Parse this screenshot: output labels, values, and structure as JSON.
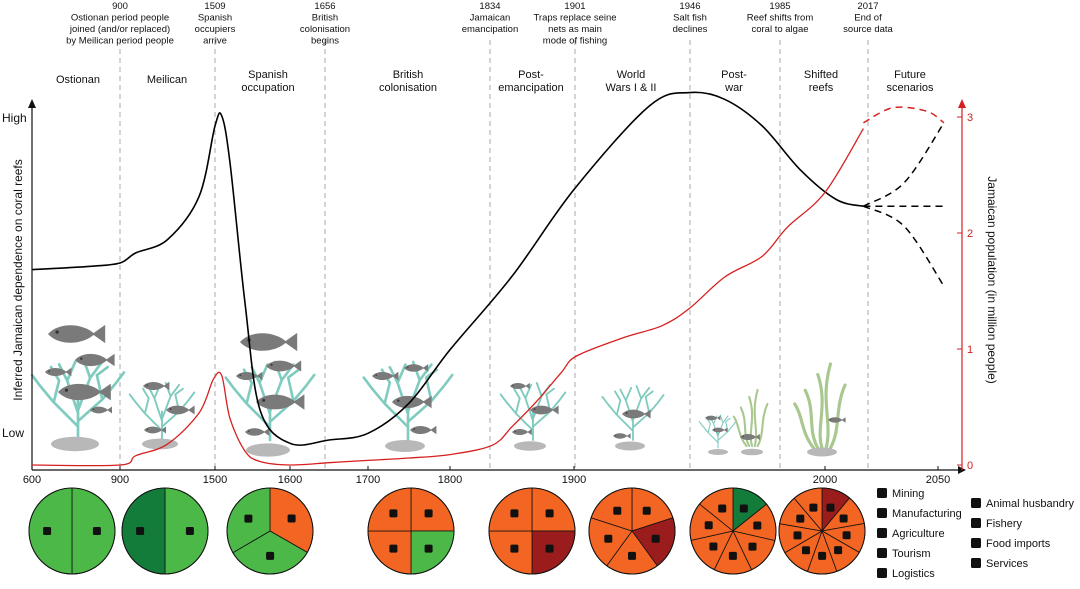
{
  "events": [
    {
      "lines": [
        "900",
        "Ostionan period people",
        "joined (and/or replaced)",
        "by Meilican period people"
      ]
    },
    {
      "lines": [
        "1509",
        "Spanish",
        "occupiers",
        "arrive"
      ]
    },
    {
      "lines": [
        "1656",
        "British",
        "colonisation",
        "begins"
      ]
    },
    {
      "lines": [
        "1834",
        "Jamaican",
        "emancipation"
      ]
    },
    {
      "lines": [
        "1901",
        "Traps replace seine",
        "nets as main",
        "mode of fishing"
      ]
    },
    {
      "lines": [
        "1946",
        "Salt fish",
        "declines"
      ]
    },
    {
      "lines": [
        "1985",
        "Reef shifts from",
        "coral to algae"
      ]
    },
    {
      "lines": [
        "2017",
        "End of",
        "source data"
      ]
    }
  ],
  "periods": [
    {
      "lines": [
        "Ostionan"
      ]
    },
    {
      "lines": [
        "Meilican"
      ]
    },
    {
      "lines": [
        "Spanish",
        "occupation"
      ]
    },
    {
      "lines": [
        "British",
        "colonisation"
      ]
    },
    {
      "lines": [
        "Post-",
        "emancipation"
      ]
    },
    {
      "lines": [
        "World",
        "Wars I & II"
      ]
    },
    {
      "lines": [
        "Post-",
        "war"
      ]
    },
    {
      "lines": [
        "Shifted",
        "reefs"
      ]
    },
    {
      "lines": [
        "Future",
        "scenarios"
      ]
    }
  ],
  "axes": {
    "left_label": "Inferred Jamaican dependence on coral reefs",
    "left_high": "High",
    "left_low": "Low",
    "right_label": "Jamaican population (in million people)",
    "right_ticks": [
      "0",
      "1",
      "2",
      "3"
    ],
    "x_ticks": [
      "600",
      "900",
      "1500",
      "1600",
      "1700",
      "1800",
      "1900",
      "2000",
      "2050"
    ]
  },
  "colors": {
    "dependence_line": "#000000",
    "population_line": "#d62020",
    "coral": "#7fcbbf",
    "fish": "#7a7a7a",
    "rock": "#b8b8b8",
    "algae": "#a8c890",
    "pie_green": "#4cb848",
    "pie_dark_green": "#137c3a",
    "pie_orange": "#f26522",
    "pie_dark_red": "#9b1c1c"
  },
  "chart_data": {
    "type": "line",
    "series": [
      {
        "name": "",
        "axis": "left",
        "relative_units": "0 = Low, 1 = High",
        "x": [
          600,
          800,
          900,
          1000,
          1200,
          1400,
          1500,
          1509,
          1520,
          1540,
          1560,
          1600,
          1650,
          1700,
          1750,
          1800,
          1850,
          1900,
          1930,
          1946,
          1960,
          1975,
          1990,
          2005,
          2017
        ],
        "y": [
          0.54,
          0.55,
          0.56,
          0.59,
          0.63,
          0.76,
          0.97,
          1.0,
          0.86,
          0.44,
          0.12,
          0.02,
          0.03,
          0.05,
          0.14,
          0.3,
          0.52,
          0.78,
          1.03,
          1.07,
          1.05,
          0.97,
          0.84,
          0.75,
          0.73
        ]
      },
      {
        "name": "",
        "axis": "right",
        "units": "million people",
        "x": [
          600,
          900,
          1000,
          1200,
          1400,
          1490,
          1509,
          1520,
          1540,
          1560,
          1600,
          1650,
          1700,
          1750,
          1800,
          1834,
          1850,
          1870,
          1890,
          1901,
          1920,
          1935,
          1946,
          1960,
          1975,
          1985,
          2000,
          2017
        ],
        "y": [
          0.0,
          0.0,
          0.08,
          0.18,
          0.45,
          0.74,
          0.77,
          0.4,
          0.12,
          0.03,
          0.0,
          0.02,
          0.04,
          0.06,
          0.09,
          0.17,
          0.33,
          0.55,
          0.8,
          0.94,
          1.1,
          1.2,
          1.35,
          1.62,
          1.8,
          2.05,
          2.35,
          2.9
        ]
      }
    ],
    "future_scenarios": [
      {
        "axis": "left",
        "x": [
          2017,
          2035,
          2055
        ],
        "y": [
          0.73,
          0.8,
          0.98
        ]
      },
      {
        "axis": "left",
        "x": [
          2017,
          2035,
          2055
        ],
        "y": [
          0.73,
          0.73,
          0.73
        ]
      },
      {
        "axis": "left",
        "x": [
          2017,
          2035,
          2055
        ],
        "y": [
          0.73,
          0.67,
          0.49
        ]
      },
      {
        "axis": "right",
        "x": [
          2017,
          2030,
          2045,
          2055
        ],
        "y": [
          2.95,
          3.08,
          3.05,
          2.95
        ]
      }
    ]
  },
  "pies": [
    {
      "period": "Ostionan",
      "slices": [
        {
          "sector": "Agriculture",
          "color": "#4cb848",
          "share": 0.5
        },
        {
          "sector": "Fishery",
          "color": "#4cb848",
          "share": 0.5
        }
      ]
    },
    {
      "period": "Meilican",
      "slices": [
        {
          "sector": "Agriculture",
          "color": "#4cb848",
          "share": 0.5
        },
        {
          "sector": "Fishery",
          "color": "#137c3a",
          "share": 0.5
        }
      ]
    },
    {
      "period": "Spanish occupation",
      "slices": [
        {
          "sector": "Animal husbandry",
          "color": "#f26522",
          "share": 0.333
        },
        {
          "sector": "Fishery",
          "color": "#4cb848",
          "share": 0.333
        },
        {
          "sector": "Agriculture",
          "color": "#4cb848",
          "share": 0.334
        }
      ]
    },
    {
      "period": "British colonisation",
      "slices": [
        {
          "sector": "Agriculture",
          "color": "#f26522",
          "share": 0.25
        },
        {
          "sector": "Fishery",
          "color": "#4cb848",
          "share": 0.25
        },
        {
          "sector": "Animal husbandry",
          "color": "#f26522",
          "share": 0.25
        },
        {
          "sector": "Food imports",
          "color": "#f26522",
          "share": 0.25
        }
      ]
    },
    {
      "period": "Post-emancipation",
      "slices": [
        {
          "sector": "Agriculture",
          "color": "#f26522",
          "share": 0.25
        },
        {
          "sector": "Fishery",
          "color": "#9b1c1c",
          "share": 0.25
        },
        {
          "sector": "Animal husbandry",
          "color": "#f26522",
          "share": 0.25
        },
        {
          "sector": "Food imports",
          "color": "#f26522",
          "share": 0.25
        }
      ]
    },
    {
      "period": "World Wars I & II",
      "slices": [
        {
          "sector": "Agriculture",
          "color": "#f26522",
          "share": 0.2
        },
        {
          "sector": "Fishery",
          "color": "#9b1c1c",
          "share": 0.2
        },
        {
          "sector": "Animal husbandry",
          "color": "#f26522",
          "share": 0.2
        },
        {
          "sector": "Food imports",
          "color": "#f26522",
          "share": 0.2
        },
        {
          "sector": "Tourism",
          "color": "#f26522",
          "share": 0.2
        }
      ]
    },
    {
      "period": "Post-war",
      "slices": [
        {
          "sector": "Agriculture",
          "color": "#137c3a",
          "share": 0.143
        },
        {
          "sector": "Animal husbandry",
          "color": "#f26522",
          "share": 0.143
        },
        {
          "sector": "Food imports",
          "color": "#f26522",
          "share": 0.143
        },
        {
          "sector": "Manufacturing",
          "color": "#f26522",
          "share": 0.143
        },
        {
          "sector": "Mining",
          "color": "#f26522",
          "share": 0.143
        },
        {
          "sector": "Tourism",
          "color": "#f26522",
          "share": 0.143
        },
        {
          "sector": "Fishery",
          "color": "#f26522",
          "share": 0.142
        }
      ]
    },
    {
      "period": "Shifted reefs",
      "slices": [
        {
          "sector": "Fishery",
          "color": "#9b1c1c",
          "share": 0.111
        },
        {
          "sector": "Animal husbandry",
          "color": "#f26522",
          "share": 0.111
        },
        {
          "sector": "Agriculture",
          "color": "#f26522",
          "share": 0.111
        },
        {
          "sector": "Food imports",
          "color": "#f26522",
          "share": 0.111
        },
        {
          "sector": "Tourism",
          "color": "#f26522",
          "share": 0.111
        },
        {
          "sector": "Mining",
          "color": "#f26522",
          "share": 0.111
        },
        {
          "sector": "Manufacturing",
          "color": "#f26522",
          "share": 0.111
        },
        {
          "sector": "Logistics",
          "color": "#f26522",
          "share": 0.111
        },
        {
          "sector": "Services",
          "color": "#f26522",
          "share": 0.112
        }
      ]
    }
  ],
  "legend": [
    {
      "icon": "mining-icon",
      "label": "Mining"
    },
    {
      "icon": "manufacturing-icon",
      "label": "Manufacturing"
    },
    {
      "icon": "agriculture-icon",
      "label": "Agriculture"
    },
    {
      "icon": "tourism-icon",
      "label": "Tourism"
    },
    {
      "icon": "logistics-icon",
      "label": "Logistics"
    },
    {
      "icon": "animal-husbandry-icon",
      "label": "Animal husbandry"
    },
    {
      "icon": "fishery-icon",
      "label": "Fishery"
    },
    {
      "icon": "food-imports-icon",
      "label": "Food imports"
    },
    {
      "icon": "services-icon",
      "label": "Services"
    }
  ]
}
